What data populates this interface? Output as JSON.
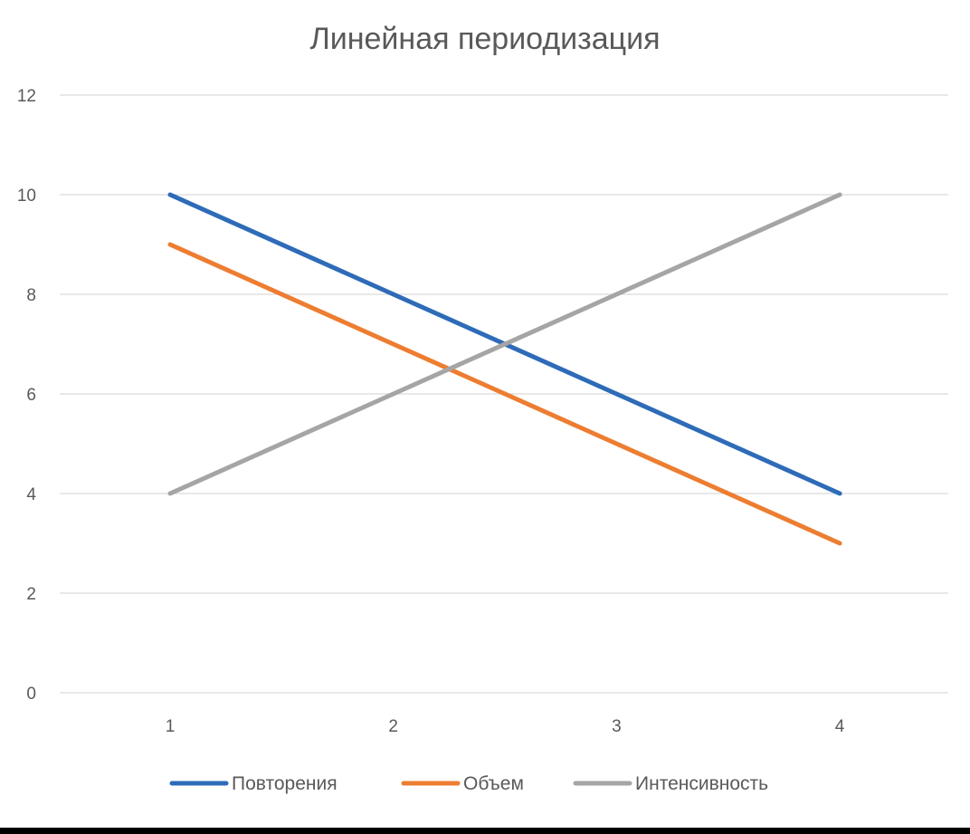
{
  "chart_data": {
    "type": "line",
    "title": "Линейная периодизация",
    "xlabel": "",
    "ylabel": "",
    "categories": [
      "1",
      "2",
      "3",
      "4"
    ],
    "ylim": [
      0,
      12
    ],
    "yticks": [
      "0",
      "2",
      "4",
      "6",
      "8",
      "10",
      "12"
    ],
    "grid": true,
    "legend_position": "bottom",
    "series": [
      {
        "name": "Повторения",
        "values": [
          10,
          8,
          6,
          4
        ],
        "color": "#2e6bb8"
      },
      {
        "name": "Объем",
        "values": [
          9,
          7,
          5,
          3
        ],
        "color": "#ed7d31"
      },
      {
        "name": "Интенсивность",
        "values": [
          4,
          6,
          8,
          10
        ],
        "color": "#a5a5a5"
      }
    ]
  }
}
